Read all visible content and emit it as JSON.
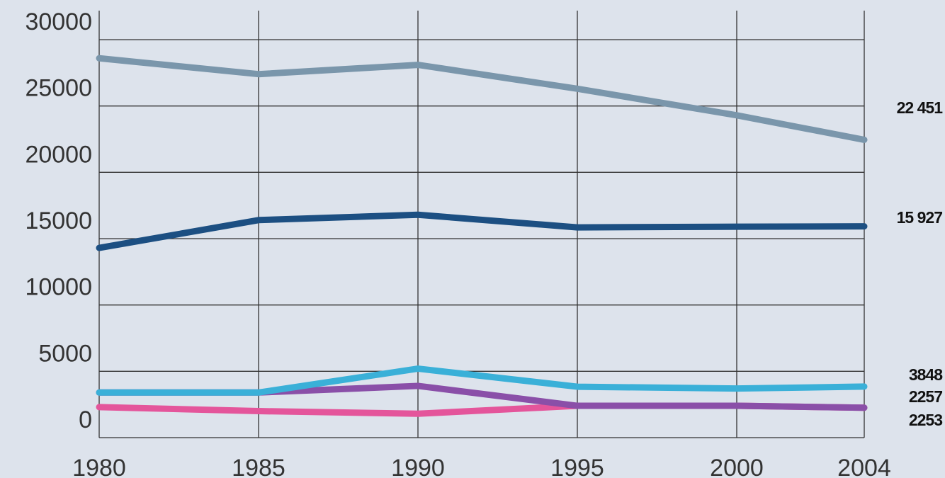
{
  "chart_data": {
    "type": "line",
    "x": [
      1980,
      1985,
      1990,
      1995,
      2000,
      2004
    ],
    "xlim": [
      1980,
      2004
    ],
    "xticks": [
      1980,
      1985,
      1990,
      1995,
      2000,
      2004
    ],
    "ylim": [
      0,
      30000
    ],
    "yticks": [
      0,
      5000,
      10000,
      15000,
      20000,
      25000,
      30000
    ],
    "grid": true,
    "series": [
      {
        "color": "#7a96ab",
        "values": [
          28600,
          27400,
          28100,
          26300,
          24300,
          22451
        ],
        "value_labels": [
          null,
          null,
          null,
          null,
          null,
          "22 451"
        ]
      },
      {
        "color": "#1c4f82",
        "values": [
          14300,
          16400,
          16800,
          15850,
          15900,
          15927
        ],
        "value_labels": [
          null,
          null,
          null,
          null,
          null,
          "15 927"
        ]
      },
      {
        "color": "#e4559b",
        "values": [
          2300,
          2000,
          1800,
          2400,
          2400,
          2253
        ],
        "value_labels": [
          null,
          null,
          null,
          null,
          null,
          "2253"
        ]
      },
      {
        "color": "#8a4fa8",
        "values": [
          3400,
          3400,
          3900,
          2400,
          2400,
          2257
        ],
        "value_labels": [
          null,
          null,
          null,
          null,
          null,
          "2257"
        ]
      },
      {
        "color": "#3ab0d8",
        "values": [
          3400,
          3400,
          5200,
          3840,
          3700,
          3848
        ],
        "value_labels": [
          null,
          null,
          null,
          null,
          null,
          "3848"
        ]
      }
    ]
  }
}
